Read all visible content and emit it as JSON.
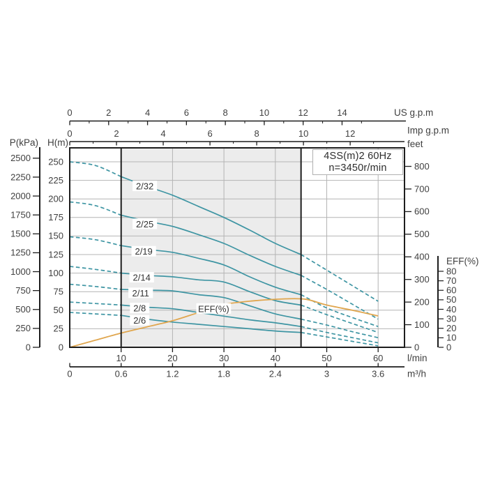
{
  "title_box": {
    "line1": "4SS(m)2  60Hz",
    "line2": "n=3450r/min"
  },
  "axis_titles": {
    "us_gpm": "US g.p.m",
    "imp_gpm": "Imp g.p.m",
    "feet": "feet",
    "p_kpa": "P(kPa)",
    "h_m": "H(m)",
    "eff": "EFF(%)",
    "lmin": "l/min",
    "m3h": "m³/h"
  },
  "colors": {
    "curve_teal": "#3e95a3",
    "eff_orange": "#e0a64e",
    "grid": "#b4b4b4",
    "axis_black": "#1d1d1d",
    "shaded_region": "#ececec",
    "text": "#3f3f3f",
    "curve_label_text": "#333333",
    "box_border": "#b0b0b0"
  },
  "chart_data": {
    "type": "line",
    "title": "4SS(m)2 60Hz n=3450r/min pump performance curves",
    "x_axis": {
      "primary_unit": "l/min",
      "range_lmin": [
        0,
        65
      ],
      "ticks_lmin": [
        10,
        20,
        30,
        40,
        50,
        60
      ],
      "ticks_m3h": [
        0,
        0.6,
        1.2,
        1.8,
        2.4,
        3,
        3.6
      ],
      "ticks_us_gpm": [
        0,
        2,
        4,
        6,
        8,
        10,
        12,
        14
      ],
      "minor_ticks_us_gpm": [
        1,
        3,
        5,
        7,
        9,
        11,
        13,
        15
      ],
      "ticks_imp_gpm": [
        0,
        2,
        4,
        6,
        8,
        10,
        12
      ],
      "minor_ticks_imp_gpm": [
        1,
        3,
        5,
        7,
        9,
        11,
        13
      ]
    },
    "y_axis": {
      "primary_unit": "H(m)",
      "range_h_m": [
        0,
        268
      ],
      "ticks_h_m": [
        250,
        225,
        200,
        175,
        150,
        125,
        100,
        75,
        50,
        25,
        0
      ],
      "ticks_p_kpa": [
        2500,
        2250,
        2000,
        1750,
        1500,
        1250,
        1000,
        750,
        500,
        250,
        0
      ],
      "ticks_feet": [
        800,
        700,
        600,
        500,
        400,
        300,
        200,
        100,
        0
      ],
      "ticks_eff_pct": [
        80,
        70,
        60,
        50,
        40,
        30,
        20,
        10,
        0
      ]
    },
    "operating_range_lmin": [
      10,
      45
    ],
    "head_curves": [
      {
        "name": "2/32",
        "label_at": [
          14.6,
          217
        ],
        "points": [
          [
            0,
            250
          ],
          [
            5,
            245
          ],
          [
            10,
            230
          ],
          [
            15,
            217
          ],
          [
            20,
            205
          ],
          [
            25,
            190
          ],
          [
            30,
            175
          ],
          [
            35,
            158
          ],
          [
            40,
            140
          ],
          [
            45,
            125
          ],
          [
            50,
            104
          ],
          [
            55,
            83
          ],
          [
            60,
            62
          ]
        ]
      },
      {
        "name": "2/25",
        "label_at": [
          14.6,
          166
        ],
        "points": [
          [
            0,
            196
          ],
          [
            5,
            191
          ],
          [
            10,
            178
          ],
          [
            15,
            170
          ],
          [
            20,
            163
          ],
          [
            25,
            152
          ],
          [
            30,
            140
          ],
          [
            35,
            124
          ],
          [
            40,
            109
          ],
          [
            45,
            97
          ],
          [
            50,
            78
          ],
          [
            55,
            58
          ],
          [
            60,
            38
          ]
        ]
      },
      {
        "name": "2/19",
        "label_at": [
          14.4,
          129
        ],
        "points": [
          [
            0,
            149
          ],
          [
            5,
            145
          ],
          [
            10,
            137
          ],
          [
            15,
            132
          ],
          [
            20,
            128
          ],
          [
            25,
            120
          ],
          [
            30,
            111
          ],
          [
            35,
            95
          ],
          [
            40,
            81
          ],
          [
            45,
            71
          ],
          [
            50,
            53
          ],
          [
            55,
            40
          ],
          [
            60,
            28
          ]
        ]
      },
      {
        "name": "2/14",
        "label_at": [
          14.0,
          94
        ],
        "points": [
          [
            0,
            109
          ],
          [
            5,
            105
          ],
          [
            10,
            100
          ],
          [
            15,
            97
          ],
          [
            20,
            95
          ],
          [
            25,
            91
          ],
          [
            30,
            88
          ],
          [
            35,
            75
          ],
          [
            40,
            63
          ],
          [
            45,
            57
          ],
          [
            50,
            44
          ],
          [
            55,
            32
          ],
          [
            60,
            20
          ]
        ]
      },
      {
        "name": "2/11",
        "label_at": [
          13.8,
          73
        ],
        "points": [
          [
            0,
            85
          ],
          [
            5,
            82
          ],
          [
            10,
            78
          ],
          [
            15,
            77
          ],
          [
            20,
            76
          ],
          [
            25,
            71
          ],
          [
            30,
            67
          ],
          [
            35,
            56
          ],
          [
            40,
            45
          ],
          [
            45,
            38
          ],
          [
            50,
            30
          ],
          [
            55,
            21
          ],
          [
            60,
            13
          ]
        ]
      },
      {
        "name": "2/8",
        "label_at": [
          13.6,
          52.5
        ],
        "points": [
          [
            0,
            61
          ],
          [
            5,
            59
          ],
          [
            10,
            57
          ],
          [
            15,
            54
          ],
          [
            20,
            52
          ],
          [
            25,
            47
          ],
          [
            30,
            42
          ],
          [
            35,
            37
          ],
          [
            40,
            33
          ],
          [
            45,
            28
          ],
          [
            50,
            20
          ],
          [
            55,
            13
          ],
          [
            60,
            6
          ]
        ]
      },
      {
        "name": "2/6",
        "label_at": [
          13.6,
          36
        ],
        "points": [
          [
            0,
            47
          ],
          [
            5,
            45
          ],
          [
            10,
            43
          ],
          [
            15,
            38
          ],
          [
            20,
            34
          ],
          [
            25,
            31
          ],
          [
            30,
            28
          ],
          [
            35,
            25
          ],
          [
            40,
            22
          ],
          [
            45,
            20
          ],
          [
            50,
            14
          ],
          [
            55,
            8
          ],
          [
            60,
            2
          ]
        ]
      }
    ],
    "eff_curve": {
      "name": "EFF(%)",
      "label_at": [
        28,
        40.5
      ],
      "points": [
        [
          0,
          0
        ],
        [
          5,
          7.5
        ],
        [
          10,
          15
        ],
        [
          15,
          21.5
        ],
        [
          20,
          28
        ],
        [
          25,
          36.5
        ],
        [
          30,
          45
        ],
        [
          36,
          49
        ],
        [
          42,
          51
        ],
        [
          46,
          50.5
        ],
        [
          50,
          44.5
        ],
        [
          55,
          39
        ],
        [
          60,
          33
        ]
      ]
    }
  }
}
